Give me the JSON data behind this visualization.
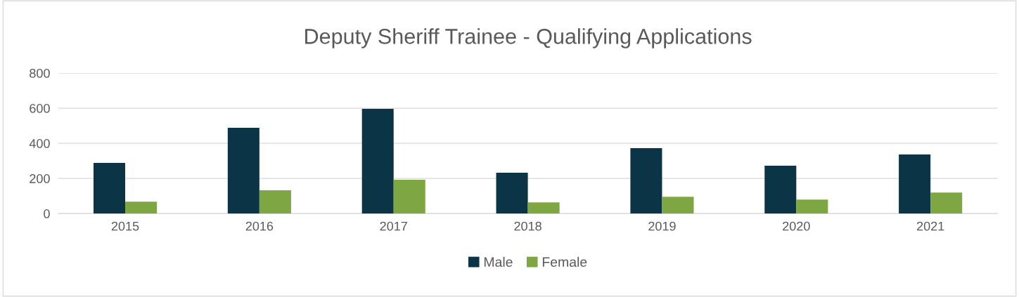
{
  "chart_data": {
    "type": "bar",
    "title": "Deputy Sheriff Trainee - Qualifying Applications",
    "categories": [
      "2015",
      "2016",
      "2017",
      "2018",
      "2019",
      "2020",
      "2021"
    ],
    "series": [
      {
        "name": "Male",
        "color": "#0b3546",
        "values": [
          288,
          488,
          596,
          232,
          372,
          272,
          336
        ]
      },
      {
        "name": "Female",
        "color": "#7ea642",
        "values": [
          68,
          132,
          192,
          64,
          96,
          80,
          120
        ]
      }
    ],
    "ylim": [
      0,
      800
    ],
    "yticks": [
      0,
      200,
      400,
      600,
      800
    ],
    "grid": "y",
    "legend": "bottom"
  }
}
